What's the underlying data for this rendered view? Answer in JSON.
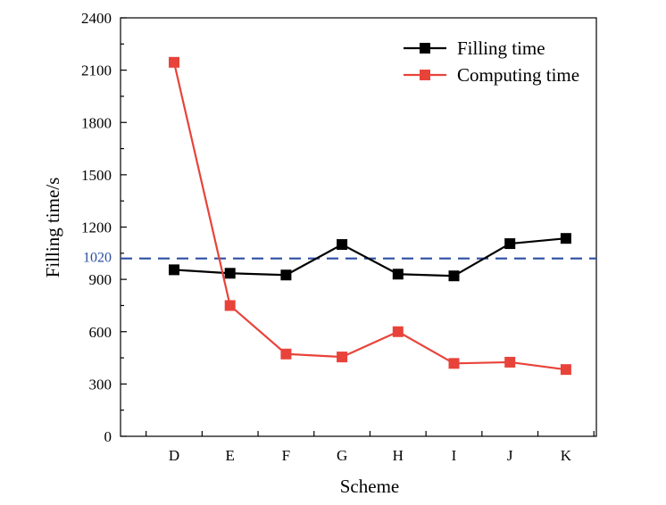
{
  "chart_data": {
    "type": "line",
    "title": "",
    "xlabel": "Scheme",
    "ylabel": "Filling time/s",
    "categories": [
      "D",
      "E",
      "F",
      "G",
      "H",
      "I",
      "J",
      "K"
    ],
    "ylim": [
      0,
      2400
    ],
    "yticks": [
      0,
      300,
      600,
      900,
      1200,
      1500,
      1800,
      2100,
      2400
    ],
    "series": [
      {
        "name": "Filling time",
        "color": "#000000",
        "marker": "square",
        "values": [
          955,
          935,
          925,
          1100,
          930,
          920,
          1105,
          1135
        ]
      },
      {
        "name": "Computing time",
        "color": "#e8433a",
        "marker": "square",
        "values": [
          2145,
          750,
          472,
          455,
          600,
          418,
          425,
          383
        ]
      }
    ],
    "reference_line": {
      "value": 1020,
      "label": "1020",
      "color": "#2b4ea2",
      "style": "dashed"
    },
    "legend_position": "top-right",
    "grid": false
  }
}
